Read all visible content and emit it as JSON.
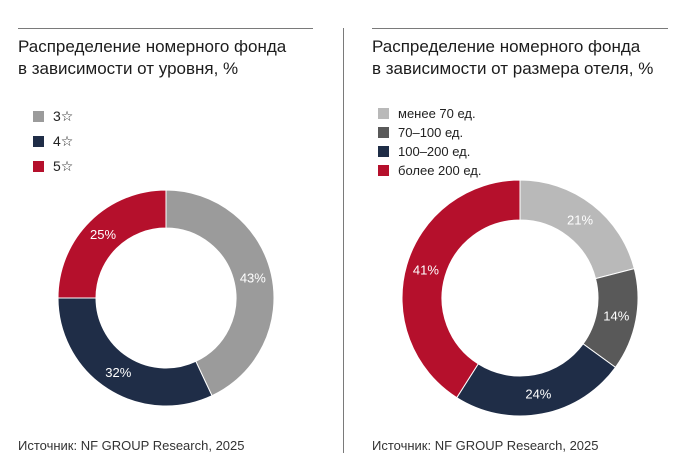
{
  "colors": {
    "light_gray": "#b9b9b9",
    "mid_gray": "#9b9b9b",
    "dark_gray": "#595959",
    "navy": "#1f2d47",
    "red": "#b5102c"
  },
  "chart_data": [
    {
      "type": "pie",
      "donut": true,
      "title": "Распределение номерного фонда в зависимости от уровня, %",
      "title_lines": [
        "Распределение номерного фонда",
        "в зависимости от уровня, %"
      ],
      "categories": [
        "3☆",
        "4☆",
        "5☆"
      ],
      "values": [
        43,
        32,
        25
      ],
      "value_labels": [
        "43%",
        "32%",
        "25%"
      ],
      "colors": [
        "#9b9b9b",
        "#1f2d47",
        "#b5102c"
      ],
      "legend": "top-left",
      "source": "Источник: NF GROUP Research, 2025"
    },
    {
      "type": "pie",
      "donut": true,
      "title": "Распределение номерного фонда в зависимости от размера отеля, %",
      "title_lines": [
        "Распределение номерного фонда",
        "в зависимости от размера отеля, %"
      ],
      "categories": [
        "менее 70 ед.",
        "70–100 ед.",
        "100–200 ед.",
        "более 200 ед."
      ],
      "values": [
        21,
        14,
        24,
        41
      ],
      "value_labels": [
        "21%",
        "14%",
        "24%",
        "41%"
      ],
      "colors": [
        "#b9b9b9",
        "#595959",
        "#1f2d47",
        "#b5102c"
      ],
      "legend": "top-left",
      "source": "Источник: NF GROUP Research, 2025"
    }
  ]
}
